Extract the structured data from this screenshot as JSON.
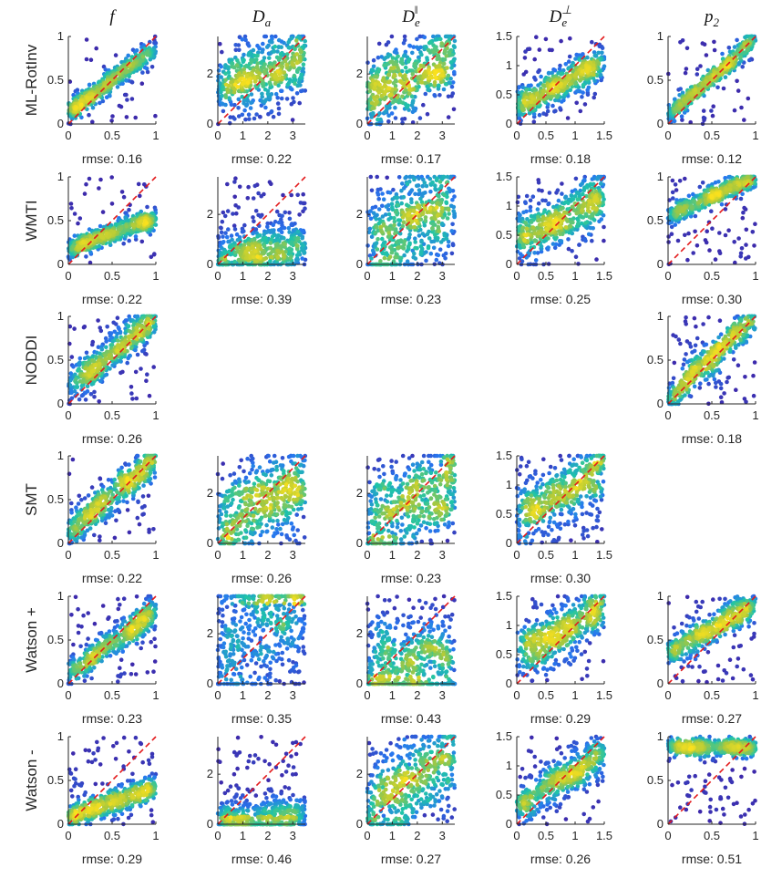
{
  "columns": [
    {
      "label": "f",
      "sub": "",
      "sup": ""
    },
    {
      "label": "D",
      "sub": "a",
      "sup": ""
    },
    {
      "label": "D",
      "sub": "e",
      "sup": "‖"
    },
    {
      "label": "D",
      "sub": "e",
      "sup": "⊥"
    },
    {
      "label": "p",
      "sub": "2",
      "sup": ""
    }
  ],
  "rows": [
    "ML-RotInv",
    "WMTI",
    "NODDI",
    "SMT",
    "Watson +",
    "Watson -"
  ],
  "colors": {
    "reference_line": "#e31a1c",
    "low_density": "#3e26a8",
    "mid_density": "#1fc4a8",
    "high_density": "#f9e01e"
  },
  "chart_data": {
    "type": "scatter",
    "title": "",
    "reference_line": "y = x (dashed)",
    "axes_by_column": [
      {
        "xlim": [
          0,
          1
        ],
        "ylim": [
          0,
          1
        ],
        "xticks": [
          "0",
          "0.5",
          "1"
        ],
        "yticks": [
          "0",
          "0.5",
          "1"
        ]
      },
      {
        "xlim": [
          0,
          3.5
        ],
        "ylim": [
          0,
          3.5
        ],
        "xticks": [
          "0",
          "1",
          "2",
          "3"
        ],
        "yticks": [
          "0",
          "2"
        ]
      },
      {
        "xlim": [
          0,
          3.5
        ],
        "ylim": [
          0,
          3.5
        ],
        "xticks": [
          "0",
          "1",
          "2",
          "3"
        ],
        "yticks": [
          "0",
          "2"
        ]
      },
      {
        "xlim": [
          0,
          1.5
        ],
        "ylim": [
          0,
          1.5
        ],
        "xticks": [
          "0",
          "0.5",
          "1",
          "1.5"
        ],
        "yticks": [
          "0",
          "0.5",
          "1",
          "1.5"
        ]
      },
      {
        "xlim": [
          0,
          1
        ],
        "ylim": [
          0,
          1
        ],
        "xticks": [
          "0",
          "0.5",
          "1"
        ],
        "yticks": [
          "0",
          "0.5",
          "1"
        ]
      }
    ],
    "panels": [
      {
        "row": 0,
        "col": 0,
        "rmse": "rmse: 0.16",
        "slope": 0.75,
        "intercept": 0.12,
        "spread": 0.07,
        "outliers": 0.06
      },
      {
        "row": 0,
        "col": 1,
        "rmse": "rmse: 0.22",
        "slope": 0.3,
        "intercept": 1.55,
        "spread": 0.2,
        "outliers": 0.1
      },
      {
        "row": 0,
        "col": 2,
        "rmse": "rmse: 0.17",
        "slope": 0.45,
        "intercept": 1.1,
        "spread": 0.22,
        "outliers": 0.08
      },
      {
        "row": 0,
        "col": 3,
        "rmse": "rmse: 0.18",
        "slope": 0.5,
        "intercept": 0.3,
        "spread": 0.1,
        "outliers": 0.1
      },
      {
        "row": 0,
        "col": 4,
        "rmse": "rmse: 0.12",
        "slope": 0.9,
        "intercept": 0.08,
        "spread": 0.06,
        "outliers": 0.08
      },
      {
        "row": 1,
        "col": 0,
        "rmse": "rmse: 0.22",
        "slope": 0.35,
        "intercept": 0.18,
        "spread": 0.06,
        "outliers": 0.1
      },
      {
        "row": 1,
        "col": 1,
        "rmse": "rmse: 0.39",
        "slope": 0.12,
        "intercept": 0.35,
        "spread": 0.15,
        "outliers": 0.12
      },
      {
        "row": 1,
        "col": 2,
        "rmse": "rmse: 0.23",
        "slope": 0.45,
        "intercept": 0.9,
        "spread": 0.28,
        "outliers": 0.1
      },
      {
        "row": 1,
        "col": 3,
        "rmse": "rmse: 0.25",
        "slope": 0.5,
        "intercept": 0.4,
        "spread": 0.15,
        "outliers": 0.12
      },
      {
        "row": 1,
        "col": 4,
        "rmse": "rmse: 0.30",
        "slope": 0.45,
        "intercept": 0.55,
        "spread": 0.06,
        "outliers": 0.12
      },
      {
        "row": 2,
        "col": 0,
        "rmse": "rmse: 0.26",
        "slope": 0.8,
        "intercept": 0.18,
        "spread": 0.12,
        "outliers": 0.08
      },
      {
        "row": 2,
        "col": 4,
        "rmse": "rmse: 0.18",
        "slope": 0.95,
        "intercept": 0.05,
        "spread": 0.1,
        "outliers": 0.15
      },
      {
        "row": 3,
        "col": 0,
        "rmse": "rmse: 0.22",
        "slope": 0.8,
        "intercept": 0.15,
        "spread": 0.11,
        "outliers": 0.1
      },
      {
        "row": 3,
        "col": 1,
        "rmse": "rmse: 0.26",
        "slope": 0.4,
        "intercept": 0.9,
        "spread": 0.25,
        "outliers": 0.12
      },
      {
        "row": 3,
        "col": 2,
        "rmse": "rmse: 0.23",
        "slope": 0.45,
        "intercept": 0.75,
        "spread": 0.28,
        "outliers": 0.14
      },
      {
        "row": 3,
        "col": 3,
        "rmse": "rmse: 0.30",
        "slope": 0.55,
        "intercept": 0.45,
        "spread": 0.2,
        "outliers": 0.15
      },
      {
        "row": 4,
        "col": 0,
        "rmse": "rmse: 0.23",
        "slope": 0.7,
        "intercept": 0.12,
        "spread": 0.09,
        "outliers": 0.12
      },
      {
        "row": 4,
        "col": 1,
        "rmse": "rmse: 0.35",
        "slope": 0.55,
        "intercept": 1.3,
        "spread": 0.4,
        "outliers": 0.15
      },
      {
        "row": 4,
        "col": 2,
        "rmse": "rmse: 0.43",
        "slope": 0.05,
        "intercept": 0.8,
        "spread": 0.3,
        "outliers": 0.12
      },
      {
        "row": 4,
        "col": 3,
        "rmse": "rmse: 0.29",
        "slope": 0.55,
        "intercept": 0.45,
        "spread": 0.15,
        "outliers": 0.15
      },
      {
        "row": 4,
        "col": 4,
        "rmse": "rmse: 0.27",
        "slope": 0.55,
        "intercept": 0.35,
        "spread": 0.08,
        "outliers": 0.15
      },
      {
        "row": 5,
        "col": 0,
        "rmse": "rmse: 0.29",
        "slope": 0.35,
        "intercept": 0.08,
        "spread": 0.07,
        "outliers": 0.14
      },
      {
        "row": 5,
        "col": 1,
        "rmse": "rmse: 0.46",
        "slope": 0.03,
        "intercept": 0.15,
        "spread": 0.12,
        "outliers": 0.16
      },
      {
        "row": 5,
        "col": 2,
        "rmse": "rmse: 0.27",
        "slope": 0.5,
        "intercept": 0.9,
        "spread": 0.25,
        "outliers": 0.12
      },
      {
        "row": 5,
        "col": 3,
        "rmse": "rmse: 0.26",
        "slope": 0.6,
        "intercept": 0.3,
        "spread": 0.12,
        "outliers": 0.12
      },
      {
        "row": 5,
        "col": 4,
        "rmse": "rmse: 0.51",
        "slope": 0.0,
        "intercept": 0.88,
        "spread": 0.05,
        "outliers": 0.15
      }
    ]
  }
}
